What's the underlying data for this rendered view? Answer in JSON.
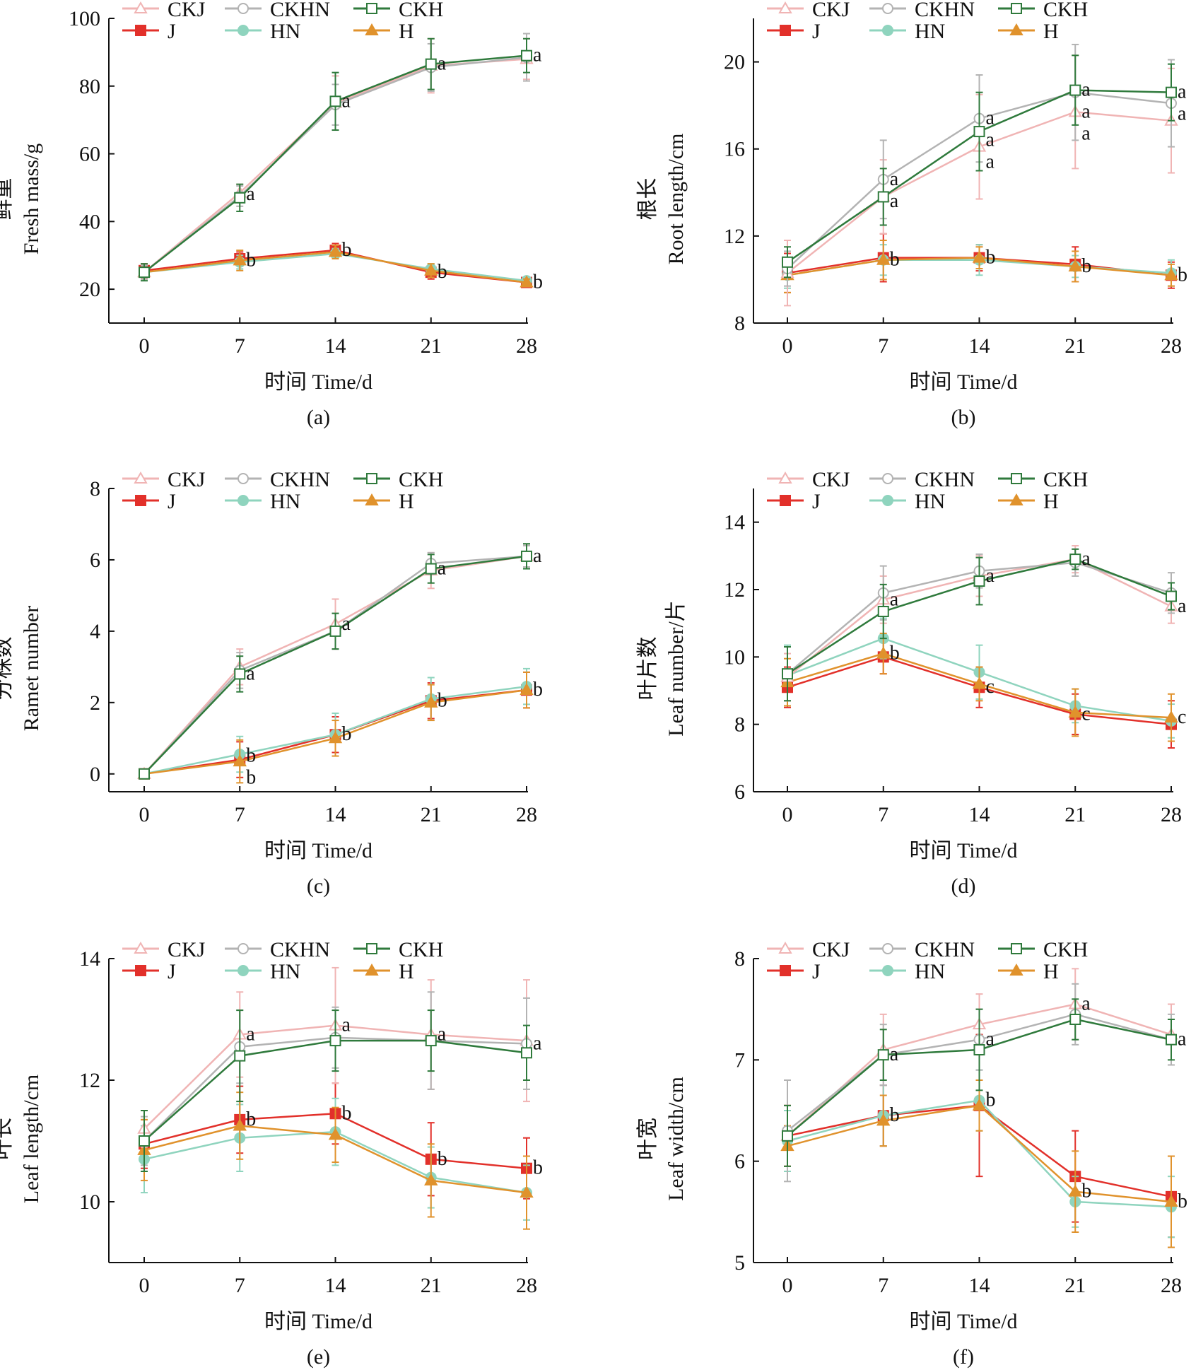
{
  "chart_data": [
    {
      "type": "line",
      "panel_label": "(a)",
      "ylabel_cn": "鲜重",
      "ylabel": "Fresh mass/g",
      "xlabel": "时间 Time/d",
      "x": [
        0,
        7,
        14,
        21,
        28
      ],
      "ylim": [
        10,
        100
      ],
      "yticks": [
        20,
        40,
        60,
        80,
        100
      ],
      "series": [
        {
          "name": "CKJ",
          "values": [
            25,
            48.5,
            75,
            86,
            88
          ],
          "err": [
            2,
            2.5,
            8,
            8,
            6
          ]
        },
        {
          "name": "CKHN",
          "values": [
            25,
            47.5,
            74.5,
            85.5,
            88.5
          ],
          "err": [
            2,
            3,
            6,
            7,
            7
          ]
        },
        {
          "name": "CKH",
          "values": [
            25,
            47,
            75.5,
            86.5,
            89
          ],
          "err": [
            2.5,
            4,
            8.5,
            7.5,
            5
          ]
        },
        {
          "name": "J",
          "values": [
            25.5,
            29,
            31.5,
            25,
            22
          ],
          "err": [
            2,
            2,
            2,
            2,
            1
          ]
        },
        {
          "name": "HN",
          "values": [
            25,
            28,
            30.5,
            26,
            22.5
          ],
          "err": [
            2,
            2,
            1.5,
            1.5,
            1
          ]
        },
        {
          "name": "H",
          "values": [
            25,
            28.5,
            31,
            25.5,
            22
          ],
          "err": [
            2,
            3,
            2,
            2,
            1
          ]
        }
      ],
      "letters": [
        {
          "x": 7,
          "y": 48,
          "text": "a"
        },
        {
          "x": 14,
          "y": 75.5,
          "text": "a"
        },
        {
          "x": 21,
          "y": 86.5,
          "text": "a"
        },
        {
          "x": 28,
          "y": 89,
          "text": "a"
        },
        {
          "x": 7,
          "y": 28.5,
          "text": "b"
        },
        {
          "x": 14,
          "y": 31.5,
          "text": "b"
        },
        {
          "x": 21,
          "y": 25,
          "text": "b"
        },
        {
          "x": 28,
          "y": 22,
          "text": "b"
        }
      ]
    },
    {
      "type": "line",
      "panel_label": "(b)",
      "ylabel_cn": "根长",
      "ylabel": "Root length/cm",
      "xlabel": "时间 Time/d",
      "x": [
        0,
        7,
        14,
        21,
        28
      ],
      "ylim": [
        8,
        22
      ],
      "yticks": [
        8,
        12,
        16,
        20
      ],
      "series": [
        {
          "name": "CKJ",
          "values": [
            10.3,
            13.8,
            16.1,
            17.7,
            17.3
          ],
          "err": [
            1.5,
            1.7,
            2.4,
            2.6,
            2.4
          ]
        },
        {
          "name": "CKHN",
          "values": [
            10.5,
            14.6,
            17.4,
            18.6,
            18.1
          ],
          "err": [
            0.8,
            1.8,
            2,
            2.2,
            2
          ]
        },
        {
          "name": "CKH",
          "values": [
            10.8,
            13.8,
            16.8,
            18.7,
            18.6
          ],
          "err": [
            0.7,
            1.3,
            1.8,
            1.6,
            1.3
          ]
        },
        {
          "name": "J",
          "values": [
            10.3,
            11,
            11,
            10.7,
            10.2
          ],
          "err": [
            0.9,
            1.1,
            0.6,
            0.8,
            0.6
          ]
        },
        {
          "name": "HN",
          "values": [
            10.2,
            10.9,
            10.9,
            10.6,
            10.3
          ],
          "err": [
            0.6,
            0.7,
            0.7,
            0.5,
            0.6
          ]
        },
        {
          "name": "H",
          "values": [
            10.2,
            10.9,
            11,
            10.6,
            10.2
          ],
          "err": [
            0.8,
            0.9,
            0.5,
            0.7,
            0.5
          ]
        }
      ],
      "letters": [
        {
          "x": 7,
          "y": 14.6,
          "text": "a"
        },
        {
          "x": 7,
          "y": 13.8,
          "text": "a"
        },
        {
          "x": 14,
          "y": 17.4,
          "text": "a"
        },
        {
          "x": 14,
          "y": 16.8,
          "text": "a"
        },
        {
          "x": 14,
          "y": 16.1,
          "text": "a"
        },
        {
          "x": 21,
          "y": 18.7,
          "text": "a"
        },
        {
          "x": 21,
          "y": 18.6,
          "text": "a"
        },
        {
          "x": 21,
          "y": 17.7,
          "text": "a"
        },
        {
          "x": 28,
          "y": 18.6,
          "text": "a"
        },
        {
          "x": 28,
          "y": 18.1,
          "text": "a"
        },
        {
          "x": 7,
          "y": 10.9,
          "text": "b"
        },
        {
          "x": 14,
          "y": 11,
          "text": "b"
        },
        {
          "x": 21,
          "y": 10.6,
          "text": "b"
        },
        {
          "x": 28,
          "y": 10.2,
          "text": "b"
        }
      ]
    },
    {
      "type": "line",
      "panel_label": "(c)",
      "ylabel_cn": "分株数",
      "ylabel": "Ramet number",
      "xlabel": "时间 Time/d",
      "x": [
        0,
        7,
        14,
        21,
        28
      ],
      "ylim": [
        -0.5,
        8
      ],
      "yticks": [
        0,
        2,
        4,
        6,
        8
      ],
      "series": [
        {
          "name": "CKJ",
          "values": [
            0,
            3,
            4.2,
            5.7,
            6.1
          ],
          "err": [
            0,
            0.5,
            0.7,
            0.5,
            0.3
          ]
        },
        {
          "name": "CKHN",
          "values": [
            0,
            2.9,
            4,
            5.9,
            6.1
          ],
          "err": [
            0,
            0.5,
            0.5,
            0.3,
            0.3
          ]
        },
        {
          "name": "CKH",
          "values": [
            0,
            2.8,
            4,
            5.75,
            6.1
          ],
          "err": [
            0,
            0.5,
            0.5,
            0.4,
            0.35
          ]
        },
        {
          "name": "J",
          "values": [
            0,
            0.4,
            1.1,
            2.05,
            2.35
          ],
          "err": [
            0,
            0.5,
            0.5,
            0.5,
            0.5
          ]
        },
        {
          "name": "HN",
          "values": [
            0,
            0.55,
            1.1,
            2.1,
            2.45
          ],
          "err": [
            0,
            0.5,
            0.6,
            0.6,
            0.5
          ]
        },
        {
          "name": "H",
          "values": [
            0,
            0.35,
            1,
            2,
            2.35
          ],
          "err": [
            0,
            0.6,
            0.5,
            0.5,
            0.5
          ]
        }
      ],
      "letters": [
        {
          "x": 7,
          "y": 2.8,
          "text": "a"
        },
        {
          "x": 14,
          "y": 4.2,
          "text": "a"
        },
        {
          "x": 21,
          "y": 5.75,
          "text": "a"
        },
        {
          "x": 28,
          "y": 6.1,
          "text": "a"
        },
        {
          "x": 7,
          "y": 0.5,
          "text": "b"
        },
        {
          "x": 7,
          "y": 0.35,
          "text": "b"
        },
        {
          "x": 14,
          "y": 1.1,
          "text": "b"
        },
        {
          "x": 21,
          "y": 2.05,
          "text": "b"
        },
        {
          "x": 28,
          "y": 2.35,
          "text": "b"
        }
      ]
    },
    {
      "type": "line",
      "panel_label": "(d)",
      "ylabel_cn": "叶片数",
      "ylabel": "Leaf number/片",
      "xlabel": "时间 Time/d",
      "x": [
        0,
        7,
        14,
        21,
        28
      ],
      "ylim": [
        6,
        15
      ],
      "yticks": [
        6,
        8,
        10,
        12,
        14
      ],
      "series": [
        {
          "name": "CKJ",
          "values": [
            9.4,
            11.7,
            12.4,
            12.9,
            11.5
          ],
          "err": [
            0.7,
            0.7,
            0.6,
            0.4,
            0.5
          ]
        },
        {
          "name": "CKHN",
          "values": [
            9.5,
            11.9,
            12.55,
            12.8,
            11.9
          ],
          "err": [
            0.8,
            0.8,
            0.5,
            0.4,
            0.6
          ]
        },
        {
          "name": "CKH",
          "values": [
            9.5,
            11.35,
            12.25,
            12.9,
            11.8
          ],
          "err": [
            0.8,
            0.8,
            0.7,
            0.3,
            0.4
          ]
        },
        {
          "name": "J",
          "values": [
            9.1,
            10,
            9.1,
            8.3,
            8
          ],
          "err": [
            0.6,
            0.5,
            0.6,
            0.6,
            0.7
          ]
        },
        {
          "name": "HN",
          "values": [
            9.45,
            10.55,
            9.55,
            8.55,
            8.1
          ],
          "err": [
            0.9,
            0.6,
            0.8,
            0.5,
            0.5
          ]
        },
        {
          "name": "H",
          "values": [
            9.25,
            10.1,
            9.2,
            8.35,
            8.2
          ],
          "err": [
            0.7,
            0.6,
            0.5,
            0.7,
            0.7
          ]
        }
      ],
      "letters": [
        {
          "x": 7,
          "y": 11.7,
          "text": "a"
        },
        {
          "x": 14,
          "y": 12.4,
          "text": "a"
        },
        {
          "x": 21,
          "y": 12.9,
          "text": "a"
        },
        {
          "x": 28,
          "y": 11.5,
          "text": "a"
        },
        {
          "x": 7,
          "y": 10.1,
          "text": "b"
        },
        {
          "x": 14,
          "y": 9.1,
          "text": "c"
        },
        {
          "x": 21,
          "y": 8.3,
          "text": "c"
        },
        {
          "x": 28,
          "y": 8.2,
          "text": "c"
        }
      ]
    },
    {
      "type": "line",
      "panel_label": "(e)",
      "ylabel_cn": "叶长",
      "ylabel": "Leaf length/cm",
      "xlabel": "时间 Time/d",
      "x": [
        0,
        7,
        14,
        21,
        28
      ],
      "ylim": [
        9,
        14
      ],
      "yticks": [
        10,
        12,
        14
      ],
      "series": [
        {
          "name": "CKJ",
          "values": [
            11.2,
            12.75,
            12.9,
            12.75,
            12.65
          ],
          "err": [
            0.3,
            0.7,
            0.95,
            0.9,
            1
          ]
        },
        {
          "name": "CKHN",
          "values": [
            11,
            12.55,
            12.7,
            12.65,
            12.6
          ],
          "err": [
            0.4,
            0.6,
            0.5,
            0.8,
            0.75
          ]
        },
        {
          "name": "CKH",
          "values": [
            11,
            12.4,
            12.65,
            12.65,
            12.45
          ],
          "err": [
            0.5,
            0.75,
            0.5,
            0.5,
            0.45
          ]
        },
        {
          "name": "J",
          "values": [
            10.95,
            11.35,
            11.45,
            10.7,
            10.55
          ],
          "err": [
            0.4,
            0.55,
            0.5,
            0.6,
            0.5
          ]
        },
        {
          "name": "HN",
          "values": [
            10.7,
            11.05,
            11.15,
            10.4,
            10.15
          ],
          "err": [
            0.55,
            0.55,
            0.55,
            0.5,
            0.45
          ]
        },
        {
          "name": "H",
          "values": [
            10.85,
            11.25,
            11.1,
            10.35,
            10.15
          ],
          "err": [
            0.5,
            0.55,
            0.45,
            0.6,
            0.6
          ]
        }
      ],
      "letters": [
        {
          "x": 7,
          "y": 12.75,
          "text": "a"
        },
        {
          "x": 14,
          "y": 12.9,
          "text": "a"
        },
        {
          "x": 21,
          "y": 12.75,
          "text": "a"
        },
        {
          "x": 28,
          "y": 12.6,
          "text": "a"
        },
        {
          "x": 7,
          "y": 11.35,
          "text": "b"
        },
        {
          "x": 14,
          "y": 11.45,
          "text": "b"
        },
        {
          "x": 21,
          "y": 10.7,
          "text": "b"
        },
        {
          "x": 28,
          "y": 10.55,
          "text": "b"
        }
      ]
    },
    {
      "type": "line",
      "panel_label": "(f)",
      "ylabel_cn": "叶宽",
      "ylabel": "Leaf width/cm",
      "xlabel": "时间 Time/d",
      "x": [
        0,
        7,
        14,
        21,
        28
      ],
      "ylim": [
        5,
        8
      ],
      "yticks": [
        5,
        6,
        7,
        8
      ],
      "series": [
        {
          "name": "CKJ",
          "values": [
            6.25,
            7.1,
            7.35,
            7.55,
            7.25
          ],
          "err": [
            0.3,
            0.35,
            0.3,
            0.35,
            0.3
          ]
        },
        {
          "name": "CKHN",
          "values": [
            6.3,
            7.05,
            7.2,
            7.45,
            7.2
          ],
          "err": [
            0.5,
            0.3,
            0.3,
            0.3,
            0.25
          ]
        },
        {
          "name": "CKH",
          "values": [
            6.25,
            7.05,
            7.1,
            7.4,
            7.2
          ],
          "err": [
            0.3,
            0.25,
            0.4,
            0.2,
            0.2
          ]
        },
        {
          "name": "J",
          "values": [
            6.25,
            6.45,
            6.55,
            5.85,
            5.65
          ],
          "err": [
            0.3,
            0.3,
            0.7,
            0.45,
            0.4
          ]
        },
        {
          "name": "HN",
          "values": [
            6.2,
            6.45,
            6.6,
            5.6,
            5.55
          ],
          "err": [
            0.3,
            0.3,
            0.3,
            0.25,
            0.3
          ]
        },
        {
          "name": "H",
          "values": [
            6.15,
            6.4,
            6.55,
            5.7,
            5.6
          ],
          "err": [
            0.2,
            0.25,
            0.25,
            0.4,
            0.45
          ]
        }
      ],
      "letters": [
        {
          "x": 7,
          "y": 7.05,
          "text": "a"
        },
        {
          "x": 14,
          "y": 7.2,
          "text": "a"
        },
        {
          "x": 21,
          "y": 7.55,
          "text": "a"
        },
        {
          "x": 28,
          "y": 7.2,
          "text": "a"
        },
        {
          "x": 7,
          "y": 6.45,
          "text": "b"
        },
        {
          "x": 14,
          "y": 6.6,
          "text": "b"
        },
        {
          "x": 21,
          "y": 5.7,
          "text": "b"
        },
        {
          "x": 28,
          "y": 5.6,
          "text": "b"
        }
      ]
    }
  ],
  "legend": [
    {
      "name": "CKJ",
      "color": "#f0b4b4",
      "marker": "triangle-open"
    },
    {
      "name": "CKHN",
      "color": "#b3b3b3",
      "marker": "circle-open"
    },
    {
      "name": "CKH",
      "color": "#2f7a3c",
      "marker": "square-open"
    },
    {
      "name": "J",
      "color": "#e2302a",
      "marker": "square-filled"
    },
    {
      "name": "HN",
      "color": "#8fd4be",
      "marker": "circle-filled"
    },
    {
      "name": "H",
      "color": "#e0922c",
      "marker": "triangle-filled"
    }
  ]
}
